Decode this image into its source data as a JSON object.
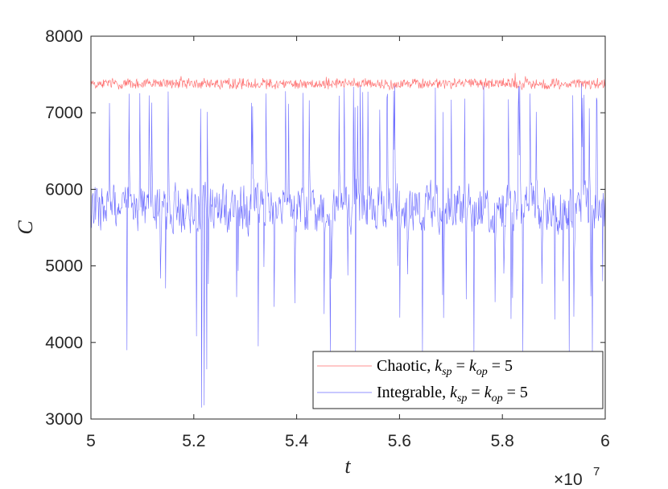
{
  "chart_data": {
    "type": "line",
    "xlabel": "t",
    "ylabel": "C",
    "x_exponent_label": "×10",
    "x_exponent_power": "7",
    "xlim": [
      50000000,
      60000000
    ],
    "ylim": [
      3000,
      8000
    ],
    "xticks": [
      50000000,
      52000000,
      54000000,
      56000000,
      58000000,
      60000000
    ],
    "xtick_labels": [
      "5",
      "5.2",
      "5.4",
      "5.6",
      "5.8",
      "6"
    ],
    "yticks": [
      3000,
      4000,
      5000,
      6000,
      7000,
      8000
    ],
    "ytick_labels": [
      "3000",
      "4000",
      "5000",
      "6000",
      "7000",
      "8000"
    ],
    "grid": false,
    "legend_position": "bottom-right",
    "series": [
      {
        "name_prefix": "Chaotic, ",
        "name_math": {
          "k": "k",
          "sub1": "sp",
          "eq": " = ",
          "sub2": "op",
          "value": " = 5"
        },
        "color": "#ff6b6b",
        "mean": 7380,
        "spread": 150,
        "approx_min": 7200,
        "approx_max": 7620,
        "points": 1000
      },
      {
        "name_prefix": "Integrable, ",
        "name_math": {
          "k": "k",
          "sub1": "sp",
          "eq": " = ",
          "sub2": "op",
          "value": " = 5"
        },
        "color": "#6b6bff",
        "mean": 5750,
        "spread": 600,
        "approx_min": 3150,
        "approx_max": 7420,
        "points": 1000,
        "dips": [
          {
            "x": 50700000,
            "y": 3900
          },
          {
            "x": 52050000,
            "y": 4080
          },
          {
            "x": 52150000,
            "y": 3150
          },
          {
            "x": 52200000,
            "y": 3180
          },
          {
            "x": 52250000,
            "y": 3650
          },
          {
            "x": 53250000,
            "y": 3950
          },
          {
            "x": 54650000,
            "y": 3860
          },
          {
            "x": 55150000,
            "y": 3860
          },
          {
            "x": 56450000,
            "y": 3860
          },
          {
            "x": 57450000,
            "y": 3860
          },
          {
            "x": 58400000,
            "y": 3860
          },
          {
            "x": 59300000,
            "y": 3860
          },
          {
            "x": 59750000,
            "y": 3860
          },
          {
            "x": 59950000,
            "y": 4800
          }
        ]
      }
    ]
  }
}
